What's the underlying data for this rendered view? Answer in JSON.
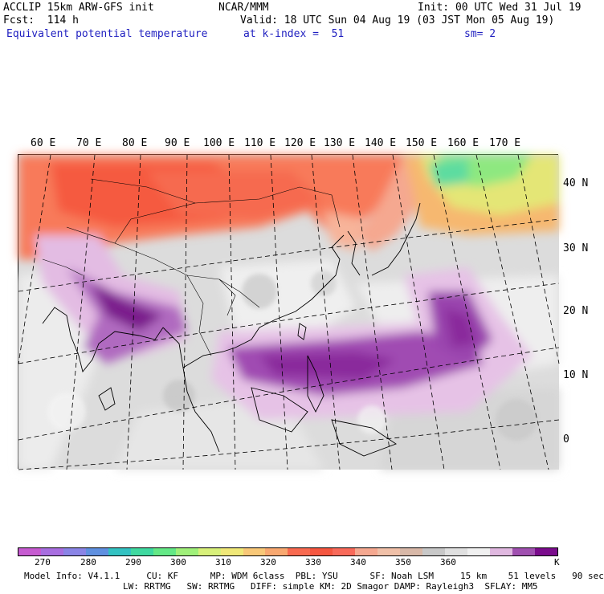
{
  "header": {
    "line1_left": "ACCLIP 15km ARW-GFS init",
    "line1_center": "NCAR/MMM",
    "line1_right": "Init: 00 UTC Wed 31 Jul 19",
    "line2_left": "Fcst:  114 h",
    "line2_right": "Valid: 18 UTC Sun 04 Aug 19 (03 JST Mon 05 Aug 19)",
    "line3_left": "Equivalent potential temperature",
    "line3_center": "at k-index =  51",
    "line3_right": "sm= 2"
  },
  "map": {
    "lon_labels": [
      "60 E",
      "70 E",
      "80 E",
      "90 E",
      "100 E",
      "110 E",
      "120 E",
      "130 E",
      "140 E",
      "150 E",
      "160 E",
      "170 E"
    ],
    "lat_labels": [
      "40 N",
      "30 N",
      "20 N",
      "10 N",
      "0"
    ]
  },
  "colorbar": {
    "colors": [
      "#c65bd1",
      "#a86ee0",
      "#8a84e6",
      "#5f90e0",
      "#33c2c2",
      "#3fd9a0",
      "#64e886",
      "#a0f07a",
      "#d8f07a",
      "#f0e878",
      "#f8c878",
      "#f8a870",
      "#f86a50",
      "#f55640",
      "#f86a5a",
      "#f5a890",
      "#f0c0a8",
      "#d8b8a8",
      "#c8c8c8",
      "#e0e0e0",
      "#f0f0f0",
      "#e0b8e0",
      "#a050b0",
      "#7a0c8c"
    ],
    "labels": [
      "270",
      "280",
      "290",
      "300",
      "310",
      "320",
      "330",
      "340",
      "350",
      "360"
    ],
    "unit": "K"
  },
  "footer": {
    "line1": "Model Info: V4.1.1     CU: KF      MP: WDM 6class  PBL: YSU      SF: Noah LSM     15 km    51 levels   90 sec",
    "line2": "LW: RRTMG   SW: RRTMG   DIFF: simple KM: 2D Smagor DAMP: Rayleigh3  SFLAY: MM5"
  }
}
